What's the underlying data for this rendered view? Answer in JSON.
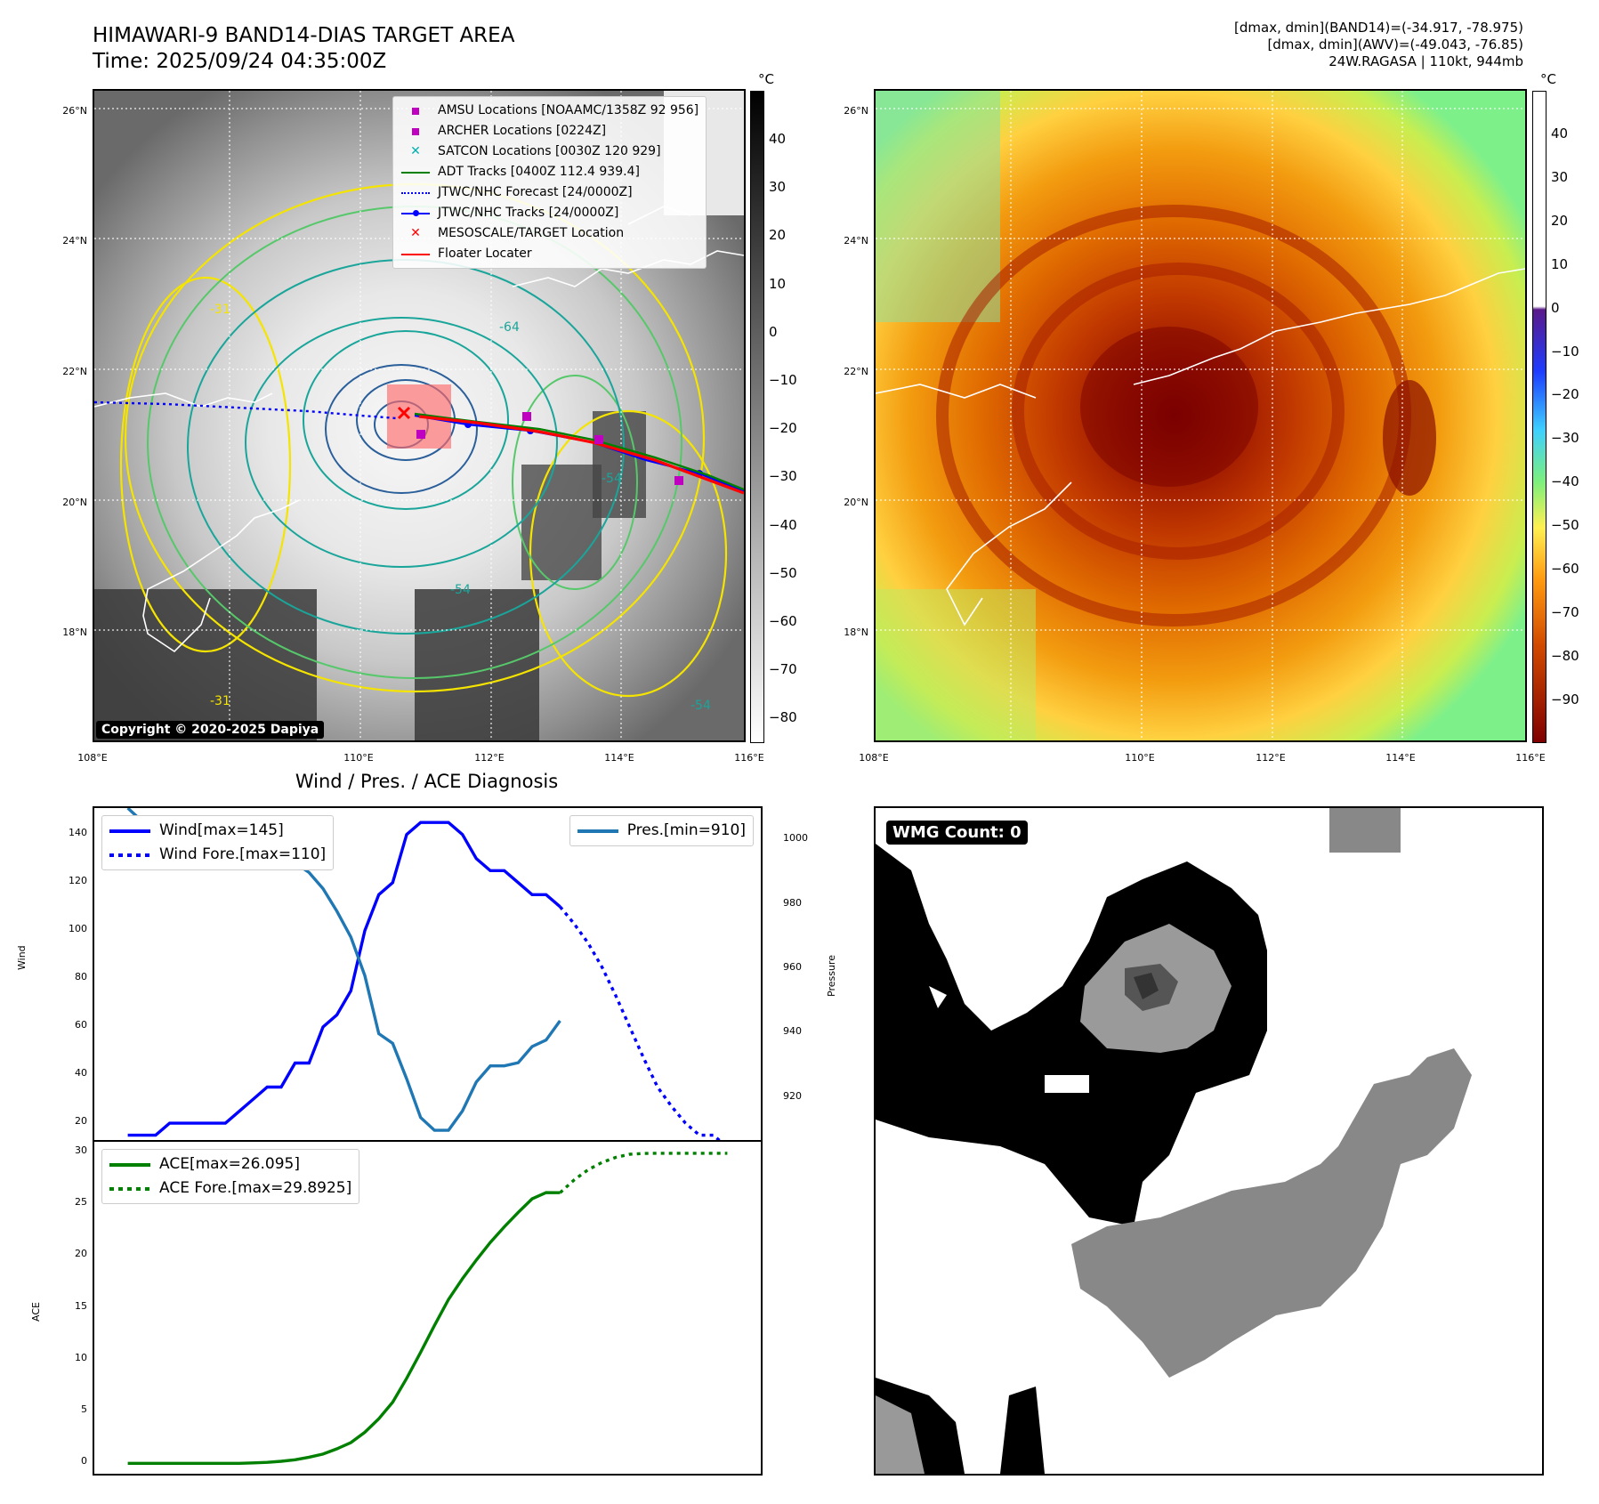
{
  "header": {
    "title_line1": "HIMAWARI-9 BAND14-DIAS TARGET AREA",
    "title_line2": "Time: 2025/09/24 04:35:00Z",
    "info_line1": "[dmax, dmin](BAND14)=(-34.917, -78.975)",
    "info_line2": "[dmax, dmin](AWV)=(-49.043, -76.85)",
    "info_line3": "24W.RAGASA | 110kt, 944mb"
  },
  "map_axes": {
    "lat_labels": [
      "26°N",
      "24°N",
      "22°N",
      "20°N",
      "18°N"
    ],
    "lon_labels": [
      "108°E",
      "110°E",
      "112°E",
      "114°E",
      "116°E"
    ]
  },
  "colorbar_ir": {
    "unit": "°C",
    "ticks": [
      "40",
      "30",
      "20",
      "10",
      "0",
      "−10",
      "−20",
      "−30",
      "−40",
      "−50",
      "−60",
      "−70",
      "−80"
    ]
  },
  "colorbar_color": {
    "unit": "°C",
    "ticks": [
      "40",
      "30",
      "20",
      "10",
      "0",
      "−10",
      "−20",
      "−30",
      "−40",
      "−50",
      "−60",
      "−70",
      "−80",
      "−90"
    ]
  },
  "contour_labels": [
    "-31",
    "-64",
    "-54",
    "-31",
    "-54",
    "-54"
  ],
  "legend": {
    "items": [
      {
        "label": "AMSU Locations [NOAAMC/1358Z 92 956]",
        "color": "#c000c0",
        "marker": "square"
      },
      {
        "label": "ARCHER Locations [0224Z]",
        "color": "#c000c0",
        "marker": "square"
      },
      {
        "label": "SATCON Locations [0030Z 120 929]",
        "color": "#00b0b0",
        "marker": "x"
      },
      {
        "label": "ADT Tracks [0400Z 112.4 939.4]",
        "color": "#008000",
        "marker": "line"
      },
      {
        "label": "JTWC/NHC Forecast [24/0000Z]",
        "color": "#0000ff",
        "marker": "dotted"
      },
      {
        "label": "JTWC/NHC Tracks [24/0000Z]",
        "color": "#0000ff",
        "marker": "line-dot"
      },
      {
        "label": "MESOSCALE/TARGET Location",
        "color": "#ff0000",
        "marker": "x"
      },
      {
        "label": "Floater Locater",
        "color": "#ff0000",
        "marker": "line"
      }
    ]
  },
  "copyright": "Copyright © 2020-2025 Dapiya",
  "diagnosis": {
    "title": "Wind / Pres. / ACE Diagnosis",
    "wind_ylabel": "Wind",
    "pres_ylabel": "Pressure",
    "ace_ylabel": "ACE",
    "legend_wind": "Wind[max=145]",
    "legend_wind_fore": "Wind Fore.[max=110]",
    "legend_pres": "Pres.[min=910]",
    "legend_ace": "ACE[max=26.095]",
    "legend_ace_fore": "ACE Fore.[max=29.8925]"
  },
  "wmg": {
    "count_label": "WMG Count: 0"
  },
  "colors": {
    "wind": "#0000ff",
    "pressure": "#1f77b4",
    "ace": "#008000",
    "ir_cmap": [
      "#000000",
      "#ffffff"
    ],
    "color_cmap": [
      "#ffffff",
      "#5a1a8a",
      "#1e3cff",
      "#3ed0ff",
      "#7cf07c",
      "#fff050",
      "#ff9a10",
      "#d24a00",
      "#800000"
    ]
  },
  "chart_data": [
    {
      "type": "line",
      "title": "Wind / Pres. / ACE Diagnosis",
      "ylabel": "Wind",
      "ylim": [
        13,
        151
      ],
      "x": [
        0,
        1,
        2,
        3,
        4,
        5,
        6,
        7,
        8,
        9,
        10,
        11,
        12,
        13,
        14,
        15,
        16,
        17,
        18,
        19,
        20,
        21,
        22,
        23,
        24,
        25,
        26,
        27,
        28,
        29,
        30,
        31,
        32,
        33,
        34,
        35,
        36,
        37,
        38,
        39,
        40,
        41,
        42,
        43
      ],
      "series": [
        {
          "name": "Wind[max=145]",
          "values": [
            15,
            15,
            15,
            20,
            20,
            20,
            20,
            20,
            25,
            30,
            35,
            35,
            45,
            45,
            60,
            65,
            75,
            100,
            115,
            120,
            140,
            145,
            145,
            145,
            140,
            130,
            125,
            125,
            120,
            115,
            115,
            110,
            null,
            null,
            null,
            null,
            null,
            null,
            null,
            null,
            null,
            null,
            null,
            null
          ]
        },
        {
          "name": "Wind Fore.[max=110]",
          "values": [
            null,
            null,
            null,
            null,
            null,
            null,
            null,
            null,
            null,
            null,
            null,
            null,
            null,
            null,
            null,
            null,
            null,
            null,
            null,
            null,
            null,
            null,
            null,
            null,
            null,
            null,
            null,
            null,
            null,
            null,
            null,
            110,
            103,
            95,
            85,
            73,
            60,
            47,
            35,
            27,
            20,
            15,
            15,
            10
          ]
        }
      ]
    },
    {
      "type": "line",
      "ylabel": "Pressure",
      "ylim": [
        907,
        1010
      ],
      "x": [
        0,
        1,
        2,
        3,
        4,
        5,
        6,
        7,
        8,
        9,
        10,
        11,
        12,
        13,
        14,
        15,
        16,
        17,
        18,
        19,
        20,
        21,
        22,
        23,
        24,
        25,
        26,
        27,
        28,
        29,
        30,
        31
      ],
      "series": [
        {
          "name": "Pres.[min=910]",
          "values": [
            1010,
            1006,
            1006,
            1007,
            1007,
            1007,
            1006,
            1005,
            1003,
            1000,
            998,
            996,
            993,
            990,
            985,
            978,
            970,
            958,
            940,
            937,
            926,
            914,
            910,
            910,
            916,
            925,
            930,
            930,
            931,
            936,
            938,
            944
          ]
        }
      ]
    },
    {
      "type": "line",
      "ylabel": "ACE",
      "ylim": [
        -1,
        31
      ],
      "x": [
        0,
        1,
        2,
        3,
        4,
        5,
        6,
        7,
        8,
        9,
        10,
        11,
        12,
        13,
        14,
        15,
        16,
        17,
        18,
        19,
        20,
        21,
        22,
        23,
        24,
        25,
        26,
        27,
        28,
        29,
        30,
        31,
        32,
        33,
        34,
        35,
        36,
        37,
        38,
        39,
        40,
        41,
        42,
        43
      ],
      "series": [
        {
          "name": "ACE[max=26.095]",
          "values": [
            0,
            0,
            0,
            0,
            0,
            0,
            0,
            0,
            0,
            0.05,
            0.1,
            0.2,
            0.35,
            0.6,
            0.9,
            1.4,
            2.0,
            3.0,
            4.3,
            5.9,
            8.2,
            10.7,
            13.3,
            15.8,
            17.8,
            19.6,
            21.3,
            22.8,
            24.2,
            25.5,
            26.1,
            26.095,
            null,
            null,
            null,
            null,
            null,
            null,
            null,
            null,
            null,
            null,
            null,
            null
          ]
        },
        {
          "name": "ACE Fore.[max=29.8925]",
          "values": [
            null,
            null,
            null,
            null,
            null,
            null,
            null,
            null,
            null,
            null,
            null,
            null,
            null,
            null,
            null,
            null,
            null,
            null,
            null,
            null,
            null,
            null,
            null,
            null,
            null,
            null,
            null,
            null,
            null,
            null,
            null,
            26.095,
            27.3,
            28.3,
            29.0,
            29.5,
            29.8,
            29.88,
            29.89,
            29.8925,
            29.8925,
            29.8925,
            29.8925,
            29.8925
          ]
        }
      ]
    }
  ],
  "axis_ticks": {
    "wind": [
      "140",
      "120",
      "100",
      "80",
      "60",
      "40",
      "20"
    ],
    "pres": [
      "1000",
      "980",
      "960",
      "940",
      "920"
    ],
    "ace": [
      "30",
      "25",
      "20",
      "15",
      "10",
      "5",
      "0"
    ]
  }
}
